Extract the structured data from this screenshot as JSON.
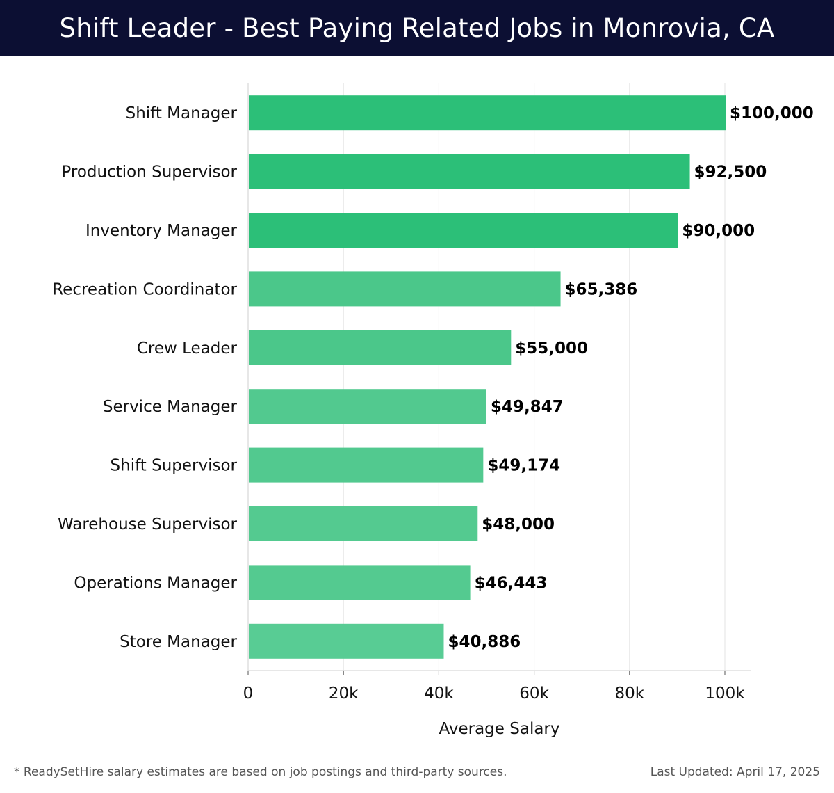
{
  "header": {
    "title": "Shift Leader - Best Paying Related Jobs in Monrovia, CA"
  },
  "chart_data": {
    "type": "bar",
    "orientation": "horizontal",
    "title": "Shift Leader - Best Paying Related Jobs in Monrovia, CA",
    "xlabel": "Average Salary",
    "ylabel": "",
    "xlim": [
      0,
      105000
    ],
    "x_ticks": [
      0,
      20000,
      40000,
      60000,
      80000,
      100000
    ],
    "x_tick_labels": [
      "0",
      "20k",
      "40k",
      "60k",
      "80k",
      "100k"
    ],
    "grid": true,
    "categories": [
      "Shift Manager",
      "Production Supervisor",
      "Inventory Manager",
      "Recreation Coordinator",
      "Crew Leader",
      "Service Manager",
      "Shift Supervisor",
      "Warehouse Supervisor",
      "Operations Manager",
      "Store Manager"
    ],
    "values": [
      100000,
      92500,
      90000,
      65386,
      55000,
      49847,
      49174,
      48000,
      46443,
      40886
    ],
    "value_labels": [
      "$100,000",
      "$92,500",
      "$90,000",
      "$65,386",
      "$55,000",
      "$49,847",
      "$49,174",
      "$48,000",
      "$46,443",
      "$40,886"
    ],
    "bar_colors": [
      "#2cbf78",
      "#2cbf78",
      "#2cbf78",
      "#4bc78a",
      "#4bc78a",
      "#52c98f",
      "#52c98f",
      "#54ca90",
      "#54ca90",
      "#58cc94"
    ]
  },
  "footer": {
    "note": "* ReadySetHire salary estimates are based on job postings and third-party sources.",
    "updated": "Last Updated: April 17, 2025"
  }
}
